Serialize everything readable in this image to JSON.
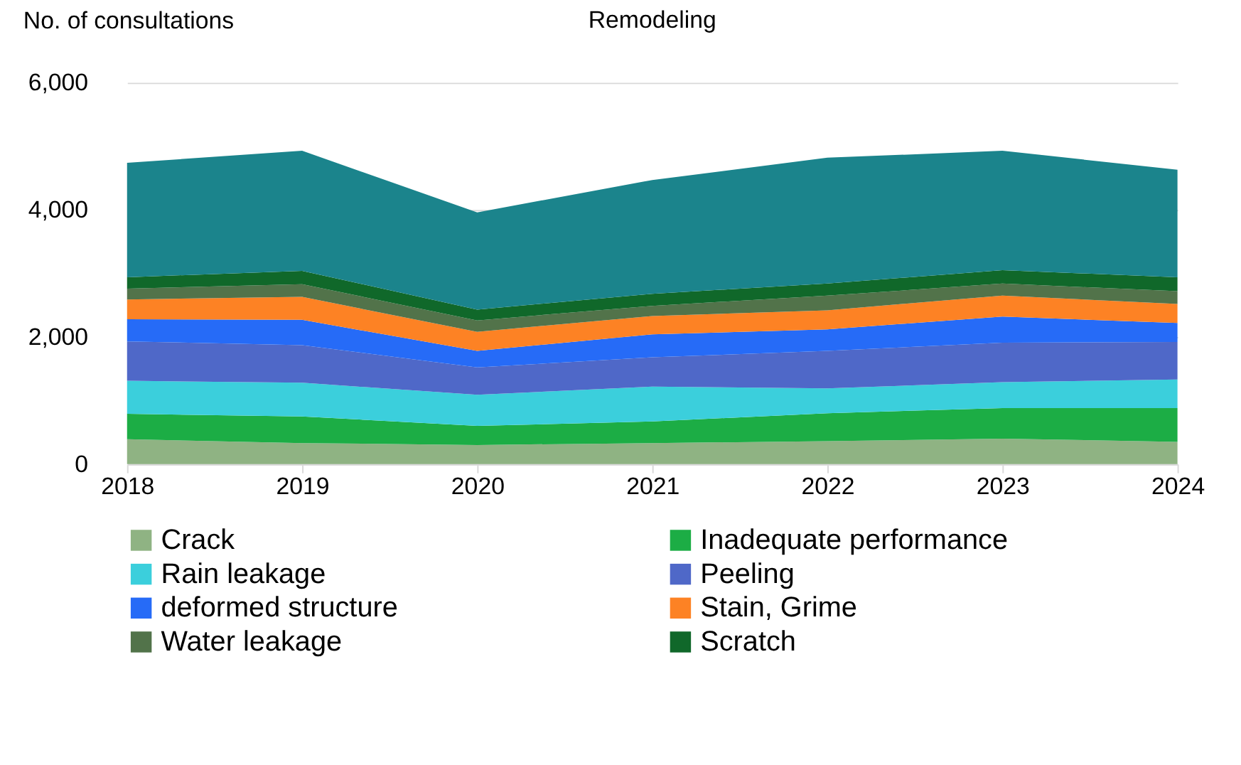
{
  "chart_data": {
    "type": "area",
    "stacked": true,
    "title": "Remodeling",
    "ylabel": "No. of consultations",
    "x": [
      2018,
      2019,
      2020,
      2021,
      2022,
      2023,
      2024
    ],
    "xlim": [
      2018,
      2024
    ],
    "xticks": [
      2018,
      2019,
      2020,
      2021,
      2022,
      2023,
      2024
    ],
    "ylim": [
      0,
      6000
    ],
    "yticks": [
      {
        "value": 0,
        "label": "0"
      },
      {
        "value": 2000,
        "label": "2,000"
      },
      {
        "value": 4000,
        "label": "4,000"
      },
      {
        "value": 6000,
        "label": "6,000"
      }
    ],
    "grid": "y",
    "legend": "bottom",
    "series": [
      {
        "name": "Crack",
        "color": "#8fb383",
        "values": [
          390,
          330,
          300,
          330,
          360,
          400,
          350
        ]
      },
      {
        "name": "Inadequate performance",
        "color": "#1cad45",
        "values": [
          400,
          420,
          300,
          340,
          440,
          480,
          530
        ]
      },
      {
        "name": "Rain leakage",
        "color": "#3bcfdc",
        "values": [
          520,
          530,
          490,
          550,
          390,
          410,
          450
        ]
      },
      {
        "name": "Peeling",
        "color": "#4f68c8",
        "values": [
          620,
          590,
          430,
          460,
          590,
          620,
          590
        ]
      },
      {
        "name": "deformed structure",
        "color": "#266bf7",
        "values": [
          350,
          400,
          260,
          360,
          340,
          410,
          300
        ]
      },
      {
        "name": "Stain, Grime",
        "color": "#fd8224",
        "values": [
          310,
          360,
          300,
          290,
          300,
          330,
          300
        ]
      },
      {
        "name": "Water leakage",
        "color": "#52734a",
        "values": [
          170,
          200,
          180,
          160,
          230,
          190,
          200
        ]
      },
      {
        "name": "Scratch",
        "color": "#10682a",
        "values": [
          180,
          210,
          170,
          190,
          190,
          210,
          220
        ]
      },
      {
        "color": "#1b848c",
        "values": [
          1800,
          1890,
          1530,
          1790,
          1980,
          1880,
          1690
        ]
      }
    ]
  }
}
